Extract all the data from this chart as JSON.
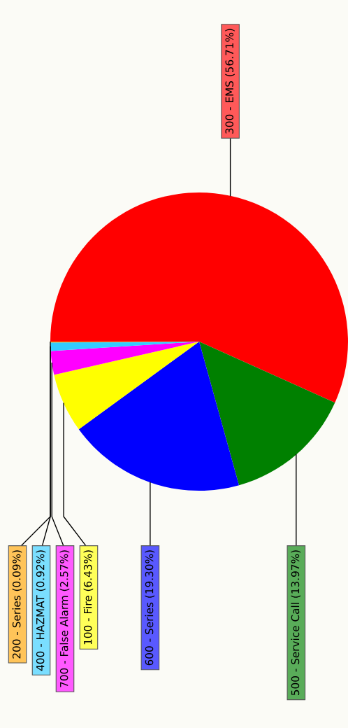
{
  "chart_data": {
    "type": "pie",
    "categories": [
      "300 - EMS",
      "500 - Service Call",
      "600 - Series",
      "100 - Fire",
      "700 - False Alarm",
      "400 - HAZMAT",
      "200 - Series"
    ],
    "values": [
      56.71,
      13.97,
      19.3,
      6.43,
      2.57,
      0.92,
      0.09
    ],
    "value_labels": [
      "(56.71%)",
      "(13.97%)",
      "(19.30%)",
      "(6.43%)",
      "(2.57%)",
      "(0.92%)",
      "(0.09%)"
    ],
    "colors": [
      "#ff0000",
      "#008000",
      "#0000ff",
      "#ffff00",
      "#ff00ff",
      "#33ccff",
      "#ffa500"
    ],
    "legend": false
  }
}
